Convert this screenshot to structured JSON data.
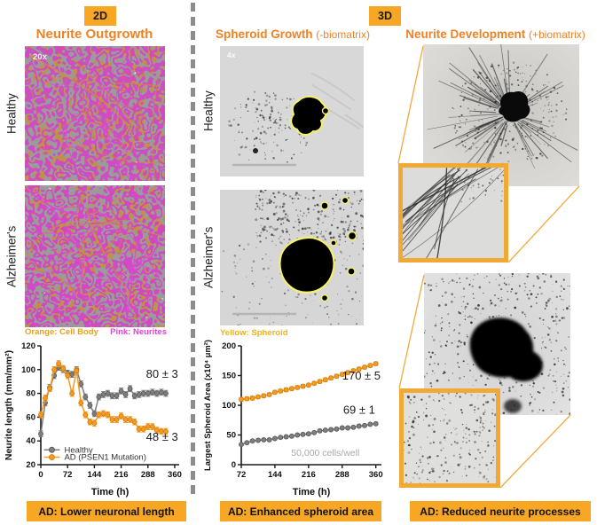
{
  "badges": {
    "left": "2D",
    "right": "3D"
  },
  "colors": {
    "accent": "#F7A723",
    "title_orange": "#F08223",
    "healthy_gray": "#7F7F7F",
    "ad_orange": "#F79A1F",
    "neurites_pink": "#E93CDA",
    "cell_body_orange": "#E3A11F",
    "spheroid_yellow": "#EFB11F",
    "divider_gray": "#8C8C8C"
  },
  "left_column": {
    "title": "Neurite Outgrowth",
    "magnification": "20x",
    "row_labels": [
      "Healthy",
      "Alzheimer's"
    ],
    "caption_items": [
      {
        "text": "Orange: Cell Body",
        "color": "#E3A11F"
      },
      {
        "text": "Pink: Neurites",
        "color": "#E93CDA"
      }
    ],
    "banner": "AD: Lower neuronal length"
  },
  "middle_column": {
    "title": "Spheroid Growth",
    "title_suffix": "(-biomatrix)",
    "magnification": "4x",
    "row_labels": [
      "Healthy",
      "Alzheimer's"
    ],
    "caption_items": [
      {
        "text": "Yellow: Spheroid",
        "color": "#EFB11F"
      }
    ],
    "banner": "AD: Enhanced spheroid area"
  },
  "right_column": {
    "title": "Neurite Development",
    "title_suffix": "(+biomatrix)",
    "banner": "AD: Reduced neurite processes"
  },
  "chart_data": [
    {
      "type": "line",
      "title": "2D neurite length over time",
      "xlabel": "Time (h)",
      "ylabel": "Neurite length (mm/mm²)",
      "xlim": [
        0,
        372
      ],
      "ylim": [
        20,
        120
      ],
      "xticks": [
        0,
        72,
        144,
        216,
        288,
        360
      ],
      "yticks": [
        20,
        40,
        60,
        80,
        100,
        120
      ],
      "grid": false,
      "legend_position": "inside-bottom-left",
      "x": [
        0,
        12,
        24,
        36,
        48,
        60,
        72,
        84,
        96,
        108,
        120,
        132,
        144,
        156,
        168,
        180,
        192,
        204,
        216,
        228,
        240,
        252,
        264,
        276,
        288,
        300,
        312,
        324,
        336
      ],
      "series": [
        {
          "name": "Healthy",
          "color": "#7F7F7F",
          "edge": "#5A5A5A",
          "err": 2.5,
          "values": [
            46,
            72,
            85,
            95,
            102,
            100,
            97,
            96,
            100,
            88,
            77,
            70,
            63,
            77,
            79,
            80,
            78,
            78,
            82,
            79,
            84,
            78,
            79,
            80,
            80,
            81,
            80,
            81,
            80
          ]
        },
        {
          "name": "AD (PSEN1 Mutation)",
          "color": "#F79A1F",
          "edge": "#D07F10",
          "err": 2.5,
          "values": [
            62,
            76,
            84,
            100,
            105,
            101,
            95,
            80,
            99,
            72,
            62,
            56,
            55,
            62,
            63,
            62,
            58,
            58,
            61,
            58,
            58,
            56,
            50,
            50,
            52,
            52,
            49,
            48,
            48
          ]
        }
      ],
      "annotations": [
        {
          "text": "80 ± 3",
          "x": 283,
          "y": 93,
          "size": 13
        },
        {
          "text": "48 ± 3",
          "x": 283,
          "y": 40,
          "size": 13
        }
      ]
    },
    {
      "type": "line",
      "title": "3D largest spheroid area over time",
      "xlabel": "Time (h)",
      "ylabel": "Largest Spheroid Area (x10⁴ μm²)",
      "xlim": [
        72,
        372
      ],
      "ylim": [
        0,
        200
      ],
      "xticks": [
        72,
        144,
        216,
        288,
        360
      ],
      "yticks": [
        0,
        50,
        100,
        150,
        200
      ],
      "grid": false,
      "legend_position": "none",
      "x": [
        72,
        84,
        96,
        108,
        120,
        132,
        144,
        156,
        168,
        180,
        192,
        204,
        216,
        228,
        240,
        252,
        264,
        276,
        288,
        300,
        312,
        324,
        336,
        348,
        360
      ],
      "series": [
        {
          "name": "AD (PSEN1 Mutation)",
          "color": "#F79A1F",
          "edge": "#D07F10",
          "err": 3,
          "values": [
            110,
            111,
            112,
            114,
            116,
            118,
            122,
            124,
            126,
            128,
            130,
            132,
            134,
            137,
            140,
            143,
            146,
            149,
            152,
            155,
            158,
            161,
            164,
            167,
            170
          ]
        },
        {
          "name": "Healthy",
          "color": "#7F7F7F",
          "edge": "#5A5A5A",
          "err": 2,
          "values": [
            34,
            37,
            40,
            41,
            42,
            42,
            44,
            46,
            47,
            48,
            50,
            51,
            52,
            54,
            57,
            58,
            59,
            60,
            62,
            62,
            63,
            65,
            66,
            68,
            69
          ]
        }
      ],
      "annotations": [
        {
          "text": "170 ± 5",
          "x": 288,
          "y": 143,
          "size": 13
        },
        {
          "text": "69 ± 1",
          "x": 290,
          "y": 86,
          "size": 13
        },
        {
          "text": "50,000 cells/well",
          "x": 252,
          "y": 15,
          "size": 10.5,
          "color": "#A8A8A8",
          "anchor": "middle"
        }
      ]
    }
  ]
}
